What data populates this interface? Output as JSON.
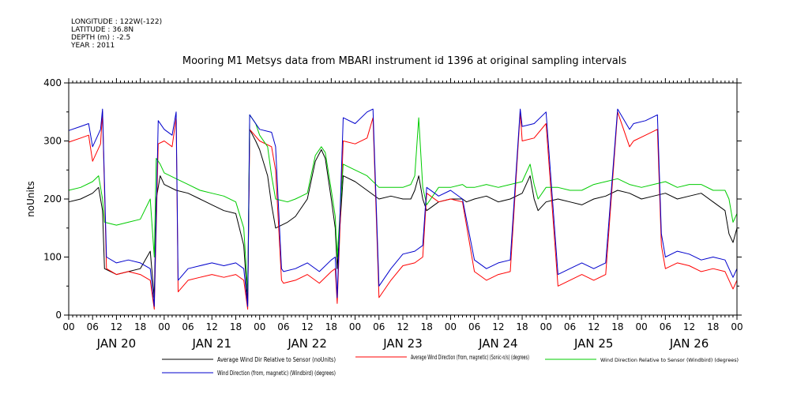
{
  "meta": {
    "longitude": "LONGITUDE : 122W(-122)",
    "latitude": "LATITUDE : 36.8N",
    "depth": "DEPTH (m) : -2.5",
    "year": "YEAR : 2011"
  },
  "chart_data": {
    "type": "line",
    "title": "Mooring M1 Metsys data from MBARI instrument id 1396 at original sampling intervals",
    "ylabel": "noUnits",
    "xlabel": "",
    "ylim": [
      0,
      400
    ],
    "yticks": [
      0,
      100,
      200,
      300,
      400
    ],
    "xlim": [
      0,
      168
    ],
    "hour_ticks": [
      "00",
      "06",
      "12",
      "18"
    ],
    "day_labels": [
      "JAN 20",
      "JAN 21",
      "JAN 22",
      "JAN 23",
      "JAN 24",
      "JAN 25",
      "JAN 26"
    ],
    "grid": false,
    "legend_position": "bottom",
    "x_units": "hours since JAN 20 00:00",
    "series": [
      {
        "name": "Average Wind Dir Relative to Sensor (noUnits)",
        "color": "#000000",
        "x": [
          0,
          3,
          6,
          7.5,
          8.5,
          9,
          12,
          15,
          18,
          20.5,
          21.5,
          22,
          23,
          24,
          27,
          30,
          33,
          36,
          39,
          42,
          44,
          45,
          45.5,
          47,
          48,
          50,
          51,
          52,
          55,
          57,
          60,
          62,
          63.5,
          64.5,
          66,
          67,
          67.5,
          69,
          72,
          75,
          78,
          81,
          84,
          86,
          87,
          88,
          89,
          90,
          93,
          96,
          99,
          100,
          102,
          105,
          108,
          111,
          114,
          116,
          117,
          118,
          120,
          123,
          126,
          129,
          132,
          135,
          138,
          141,
          144,
          147,
          150,
          153,
          156,
          159,
          162,
          165,
          166,
          167,
          168
        ],
        "values": [
          195,
          200,
          210,
          220,
          180,
          80,
          70,
          75,
          80,
          110,
          30,
          200,
          240,
          225,
          215,
          210,
          200,
          190,
          180,
          175,
          120,
          20,
          320,
          300,
          285,
          240,
          190,
          150,
          160,
          170,
          200,
          265,
          285,
          270,
          200,
          150,
          80,
          240,
          230,
          215,
          200,
          205,
          200,
          200,
          215,
          240,
          200,
          180,
          195,
          200,
          200,
          195,
          200,
          205,
          195,
          200,
          210,
          240,
          200,
          180,
          195,
          200,
          195,
          190,
          200,
          205,
          215,
          210,
          200,
          205,
          210,
          200,
          205,
          210,
          195,
          180,
          140,
          125,
          150
        ]
      },
      {
        "name": "Average Wind Direction (from, magnetic) (Sonic-n/s) (degrees)",
        "color": "#ff0000",
        "x": [
          0,
          3,
          5,
          6,
          7,
          8,
          8.5,
          9.5,
          12,
          15,
          18,
          20.5,
          21.5,
          22.5,
          24,
          26,
          27,
          27.5,
          30,
          33,
          36,
          39,
          42,
          44,
          45,
          45.5,
          48,
          51,
          52,
          53.5,
          54,
          57,
          60,
          63,
          66,
          67,
          67.5,
          69,
          72,
          75,
          76.5,
          78,
          81,
          84,
          87,
          89,
          90,
          93,
          96,
          99,
          102,
          105,
          108,
          111,
          113.5,
          114,
          117,
          120,
          123,
          126,
          129,
          132,
          135,
          138,
          141,
          142,
          145,
          148,
          149,
          150,
          153,
          156,
          159,
          162,
          165,
          167,
          168
        ],
        "values": [
          298,
          305,
          310,
          265,
          280,
          295,
          350,
          80,
          70,
          75,
          70,
          60,
          10,
          295,
          300,
          290,
          340,
          40,
          60,
          65,
          70,
          65,
          70,
          60,
          10,
          320,
          300,
          290,
          250,
          60,
          55,
          60,
          70,
          55,
          75,
          80,
          20,
          300,
          295,
          305,
          340,
          30,
          60,
          85,
          90,
          100,
          210,
          195,
          200,
          195,
          75,
          60,
          70,
          75,
          350,
          300,
          305,
          330,
          50,
          60,
          70,
          60,
          70,
          350,
          290,
          300,
          310,
          320,
          120,
          80,
          90,
          85,
          75,
          80,
          75,
          45,
          60
        ]
      },
      {
        "name": "Wind Direction Relative to Sensor (Windbird) (degrees)",
        "color": "#00cc00",
        "x": [
          0,
          3,
          6,
          7.5,
          8.5,
          9,
          12,
          15,
          18,
          20.5,
          21.5,
          22,
          23,
          24,
          27,
          30,
          33,
          36,
          39,
          42,
          44,
          45,
          45.5,
          47,
          48,
          50,
          51,
          52,
          55,
          57,
          60,
          62,
          63.5,
          64.5,
          66,
          67,
          67.5,
          69,
          72,
          75,
          78,
          81,
          84,
          86,
          87,
          88,
          89,
          90,
          93,
          96,
          99,
          100,
          102,
          105,
          108,
          111,
          114,
          116,
          117,
          118,
          120,
          123,
          126,
          129,
          132,
          135,
          138,
          141,
          144,
          147,
          150,
          153,
          156,
          159,
          162,
          165,
          166,
          167,
          168
        ],
        "values": [
          215,
          220,
          230,
          240,
          200,
          160,
          155,
          160,
          165,
          200,
          100,
          270,
          260,
          245,
          235,
          225,
          215,
          210,
          205,
          195,
          150,
          40,
          345,
          330,
          310,
          290,
          240,
          200,
          195,
          200,
          210,
          275,
          290,
          280,
          215,
          170,
          100,
          260,
          250,
          240,
          220,
          220,
          220,
          225,
          240,
          340,
          220,
          190,
          220,
          220,
          225,
          220,
          220,
          225,
          220,
          225,
          230,
          260,
          225,
          200,
          220,
          220,
          215,
          215,
          225,
          230,
          235,
          225,
          220,
          225,
          230,
          220,
          225,
          225,
          215,
          215,
          200,
          160,
          175
        ]
      },
      {
        "name": "Wind Direction (from, magnetic) (Windbird) (degrees)",
        "color": "#0000cc",
        "x": [
          0,
          3,
          5,
          6,
          7,
          8,
          8.5,
          9.5,
          12,
          15,
          18,
          20.5,
          21.5,
          22.5,
          24,
          26,
          27,
          27.5,
          30,
          33,
          36,
          39,
          42,
          44,
          45,
          45.5,
          48,
          51,
          52,
          53.5,
          54,
          57,
          60,
          63,
          66,
          67,
          67.5,
          69,
          72,
          75,
          76.5,
          78,
          81,
          84,
          87,
          89,
          90,
          93,
          96,
          99,
          102,
          105,
          108,
          111,
          113.5,
          114,
          117,
          120,
          123,
          126,
          129,
          132,
          135,
          138,
          141,
          142,
          145,
          148,
          149,
          150,
          153,
          156,
          159,
          162,
          165,
          167,
          168
        ],
        "values": [
          318,
          325,
          330,
          290,
          305,
          320,
          355,
          100,
          90,
          95,
          90,
          80,
          15,
          335,
          320,
          310,
          350,
          60,
          80,
          85,
          90,
          85,
          90,
          80,
          15,
          345,
          320,
          315,
          290,
          80,
          75,
          80,
          90,
          75,
          95,
          100,
          30,
          340,
          330,
          350,
          355,
          50,
          80,
          105,
          110,
          120,
          220,
          205,
          215,
          200,
          95,
          80,
          90,
          95,
          355,
          325,
          330,
          350,
          70,
          80,
          90,
          80,
          90,
          355,
          320,
          330,
          335,
          345,
          140,
          100,
          110,
          105,
          95,
          100,
          95,
          65,
          80
        ]
      }
    ]
  }
}
